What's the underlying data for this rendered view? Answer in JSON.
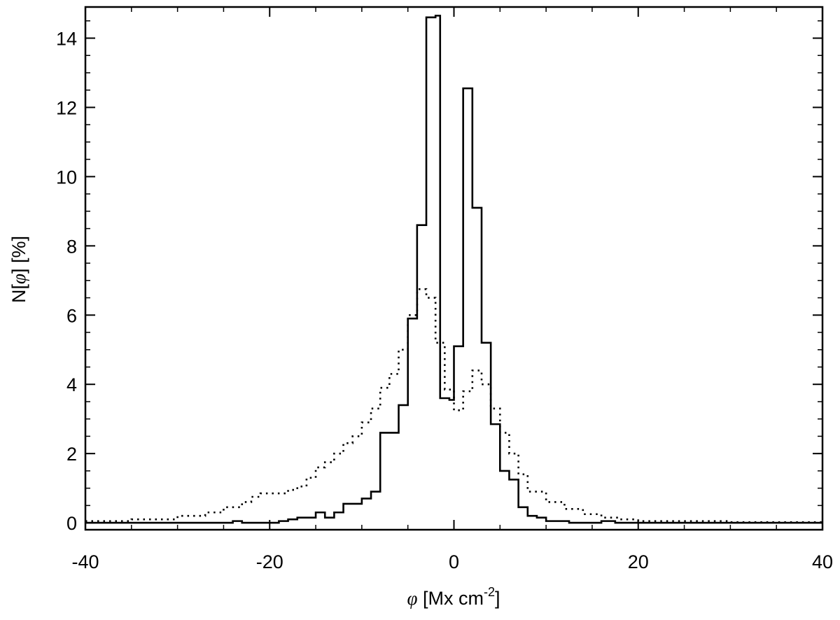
{
  "chart_data": {
    "type": "line",
    "xlabel": {
      "symbol": "φ",
      "pre": " [Mx cm",
      "sup": "-2",
      "post": "]"
    },
    "ylabel": {
      "pre": "N[",
      "symbol": "φ",
      "post": "] [%]"
    },
    "xlim": [
      -40,
      40
    ],
    "ylim": [
      -0.2,
      14.9
    ],
    "xticks": [
      -40,
      -20,
      0,
      20,
      40
    ],
    "xtick_labels": [
      "-40",
      "-20",
      "0",
      "20",
      "40"
    ],
    "yticks": [
      0,
      2,
      4,
      6,
      8,
      10,
      12,
      14
    ],
    "ytick_labels": [
      "0",
      "2",
      "4",
      "6",
      "8",
      "10",
      "12",
      "14"
    ],
    "x_minor_step": 5,
    "y_minor_step": 0.5,
    "grid": false,
    "series": [
      {
        "style": "solid",
        "points": [
          [
            -40,
            0
          ],
          [
            -24,
            0
          ],
          [
            -24,
            0.05
          ],
          [
            -23,
            0.05
          ],
          [
            -23,
            0
          ],
          [
            -19,
            0
          ],
          [
            -19,
            0.05
          ],
          [
            -18,
            0.05
          ],
          [
            -18,
            0.1
          ],
          [
            -17,
            0.1
          ],
          [
            -17,
            0.15
          ],
          [
            -15,
            0.15
          ],
          [
            -15,
            0.3
          ],
          [
            -14,
            0.3
          ],
          [
            -14,
            0.15
          ],
          [
            -13,
            0.15
          ],
          [
            -13,
            0.3
          ],
          [
            -12,
            0.3
          ],
          [
            -12,
            0.55
          ],
          [
            -10,
            0.55
          ],
          [
            -10,
            0.7
          ],
          [
            -9,
            0.7
          ],
          [
            -9,
            0.9
          ],
          [
            -8,
            0.9
          ],
          [
            -8,
            2.6
          ],
          [
            -6,
            2.6
          ],
          [
            -6,
            3.4
          ],
          [
            -5,
            3.4
          ],
          [
            -5,
            5.9
          ],
          [
            -4,
            5.9
          ],
          [
            -4,
            8.6
          ],
          [
            -3,
            8.6
          ],
          [
            -3,
            14.6
          ],
          [
            -2,
            14.6
          ],
          [
            -2,
            14.65
          ],
          [
            -1.5,
            14.65
          ],
          [
            -1.5,
            3.6
          ],
          [
            -0.5,
            3.6
          ],
          [
            -0.5,
            3.55
          ],
          [
            0,
            3.55
          ],
          [
            0,
            5.1
          ],
          [
            1,
            5.1
          ],
          [
            1,
            12.55
          ],
          [
            2,
            12.55
          ],
          [
            2,
            9.1
          ],
          [
            3,
            9.1
          ],
          [
            3,
            5.2
          ],
          [
            4,
            5.2
          ],
          [
            4,
            2.85
          ],
          [
            5,
            2.85
          ],
          [
            5,
            1.5
          ],
          [
            6,
            1.5
          ],
          [
            6,
            1.25
          ],
          [
            7,
            1.25
          ],
          [
            7,
            0.45
          ],
          [
            8,
            0.45
          ],
          [
            8,
            0.2
          ],
          [
            9,
            0.2
          ],
          [
            9,
            0.15
          ],
          [
            10,
            0.15
          ],
          [
            10,
            0.05
          ],
          [
            12.5,
            0.05
          ],
          [
            12.5,
            0
          ],
          [
            16,
            0
          ],
          [
            16,
            0.05
          ],
          [
            17.5,
            0.05
          ],
          [
            17.5,
            0
          ],
          [
            40,
            0
          ]
        ]
      },
      {
        "style": "dotted",
        "points": [
          [
            -40,
            0.05
          ],
          [
            -35,
            0.05
          ],
          [
            -35,
            0.1
          ],
          [
            -30,
            0.1
          ],
          [
            -30,
            0.2
          ],
          [
            -27,
            0.2
          ],
          [
            -27,
            0.3
          ],
          [
            -25,
            0.3
          ],
          [
            -25,
            0.45
          ],
          [
            -23,
            0.45
          ],
          [
            -23,
            0.6
          ],
          [
            -22,
            0.6
          ],
          [
            -22,
            0.75
          ],
          [
            -21,
            0.75
          ],
          [
            -21,
            0.85
          ],
          [
            -18,
            0.85
          ],
          [
            -18,
            0.95
          ],
          [
            -17,
            0.95
          ],
          [
            -17,
            1.05
          ],
          [
            -16,
            1.05
          ],
          [
            -16,
            1.3
          ],
          [
            -15,
            1.3
          ],
          [
            -15,
            1.6
          ],
          [
            -14,
            1.6
          ],
          [
            -14,
            1.75
          ],
          [
            -13,
            1.75
          ],
          [
            -13,
            2.0
          ],
          [
            -12,
            2.0
          ],
          [
            -12,
            2.3
          ],
          [
            -11,
            2.3
          ],
          [
            -11,
            2.5
          ],
          [
            -10,
            2.5
          ],
          [
            -10,
            2.9
          ],
          [
            -9,
            2.9
          ],
          [
            -9,
            3.3
          ],
          [
            -8,
            3.3
          ],
          [
            -8,
            3.9
          ],
          [
            -7,
            3.9
          ],
          [
            -7,
            4.3
          ],
          [
            -6,
            4.3
          ],
          [
            -6,
            5.0
          ],
          [
            -5,
            5.0
          ],
          [
            -5,
            6.0
          ],
          [
            -4,
            6.0
          ],
          [
            -4,
            6.75
          ],
          [
            -3,
            6.75
          ],
          [
            -3,
            6.5
          ],
          [
            -2,
            6.5
          ],
          [
            -2,
            5.2
          ],
          [
            -1,
            5.2
          ],
          [
            -1,
            3.85
          ],
          [
            0,
            3.85
          ],
          [
            0,
            3.25
          ],
          [
            1,
            3.25
          ],
          [
            1,
            3.8
          ],
          [
            2,
            3.8
          ],
          [
            2,
            4.4
          ],
          [
            3,
            4.4
          ],
          [
            3,
            4.0
          ],
          [
            4,
            4.0
          ],
          [
            4,
            3.3
          ],
          [
            5,
            3.3
          ],
          [
            5,
            2.6
          ],
          [
            6,
            2.6
          ],
          [
            6,
            2.0
          ],
          [
            7,
            2.0
          ],
          [
            7,
            1.4
          ],
          [
            8,
            1.4
          ],
          [
            8,
            0.9
          ],
          [
            10,
            0.9
          ],
          [
            10,
            0.6
          ],
          [
            12,
            0.6
          ],
          [
            12,
            0.4
          ],
          [
            14,
            0.4
          ],
          [
            14,
            0.25
          ],
          [
            16,
            0.25
          ],
          [
            16,
            0.15
          ],
          [
            18,
            0.15
          ],
          [
            18,
            0.1
          ],
          [
            20,
            0.1
          ],
          [
            20,
            0.05
          ],
          [
            30,
            0.05
          ],
          [
            30,
            0.02
          ],
          [
            40,
            0.02
          ]
        ]
      }
    ]
  }
}
